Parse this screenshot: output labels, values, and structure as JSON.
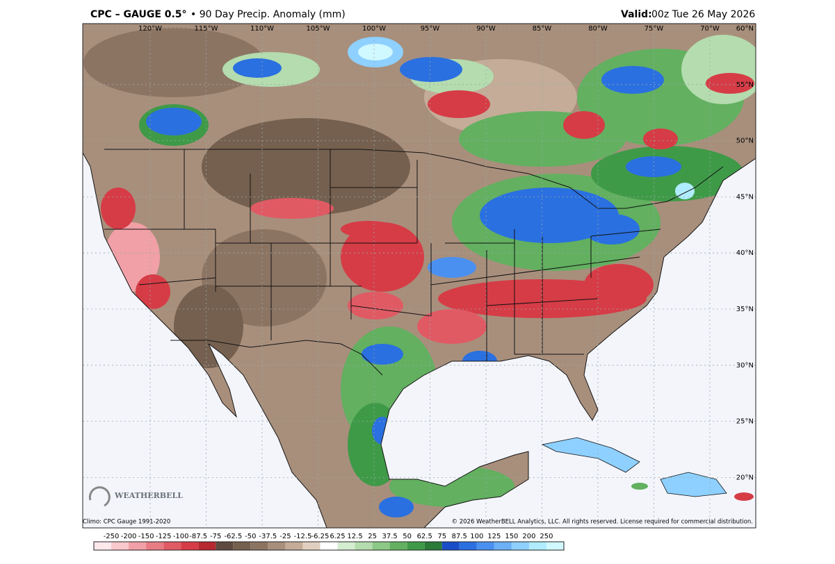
{
  "header": {
    "title": "CPC – GAUGE 0.5°",
    "subtitle": "• 90 Day Precip. Anomaly (mm)",
    "valid_label": "Valid:",
    "valid_time": "00z Tue 26 May 2026"
  },
  "map": {
    "longitudes": [
      "120°W",
      "115°W",
      "110°W",
      "105°W",
      "100°W",
      "95°W",
      "90°W",
      "85°W",
      "80°W",
      "75°W",
      "70°W"
    ],
    "latitudes": [
      "60°N",
      "55°N",
      "50°N",
      "45°N",
      "40°N",
      "35°N",
      "30°N",
      "25°N",
      "20°N"
    ],
    "logo": "WEATHERBELL"
  },
  "footer": {
    "climo": "Climo: CPC Gauge 1991-2020",
    "copyright": "© 2026 WeatherBELL Analytics, LLC. All rights reserved. License required for commercial distribution."
  },
  "colorbar": {
    "levels": [
      -250,
      -200,
      -150,
      -125,
      -100,
      -87.5,
      -75,
      -62.5,
      -50,
      -37.5,
      -25,
      -12.5,
      -6.25,
      6.25,
      12.5,
      25,
      37.5,
      50,
      62.5,
      75,
      87.5,
      100,
      125,
      150,
      200,
      250
    ],
    "colors": [
      "#fde8ec",
      "#f8c8cc",
      "#f0a0a6",
      "#e87c84",
      "#e05a64",
      "#d63c46",
      "#b82830",
      "#5e4a40",
      "#75604f",
      "#8c7463",
      "#a88f7c",
      "#c4ac98",
      "#e0cfc0",
      "#ffffff",
      "#d4ecd0",
      "#b4dcae",
      "#8cc886",
      "#62b060",
      "#3f9a48",
      "#2a7a38",
      "#1a4ec8",
      "#2a70e0",
      "#4a90f0",
      "#6cb0f8",
      "#8ed0ff",
      "#b0ecff",
      "#d0f8ff"
    ]
  }
}
